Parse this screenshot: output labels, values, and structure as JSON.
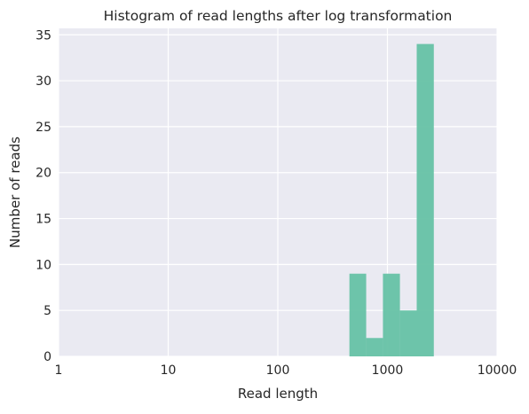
{
  "chart_data": {
    "type": "bar",
    "title": "Histogram of read lengths after log transformation",
    "xlabel": "Read length",
    "ylabel": "Number of reads",
    "xscale": "log10",
    "xlim": [
      1,
      10000
    ],
    "ylim": [
      0,
      35.7
    ],
    "xticks": [
      {
        "value": 1,
        "label": "1"
      },
      {
        "value": 10,
        "label": "10"
      },
      {
        "value": 100,
        "label": "100"
      },
      {
        "value": 1000,
        "label": "1000"
      },
      {
        "value": 10000,
        "label": "10000"
      }
    ],
    "yticks": [
      {
        "value": 0,
        "label": "0"
      },
      {
        "value": 5,
        "label": "5"
      },
      {
        "value": 10,
        "label": "10"
      },
      {
        "value": 15,
        "label": "15"
      },
      {
        "value": 20,
        "label": "20"
      },
      {
        "value": 25,
        "label": "25"
      },
      {
        "value": 30,
        "label": "30"
      },
      {
        "value": 35,
        "label": "35"
      }
    ],
    "bins": [
      {
        "x0": 450,
        "x1": 640,
        "count": 9
      },
      {
        "x0": 640,
        "x1": 910,
        "count": 2
      },
      {
        "x0": 910,
        "x1": 1300,
        "count": 9
      },
      {
        "x0": 1300,
        "x1": 1850,
        "count": 5
      },
      {
        "x0": 1850,
        "x1": 2650,
        "count": 34
      }
    ],
    "bar_color": "#66c2a5",
    "background_color": "#eaeaf2",
    "grid": true
  }
}
